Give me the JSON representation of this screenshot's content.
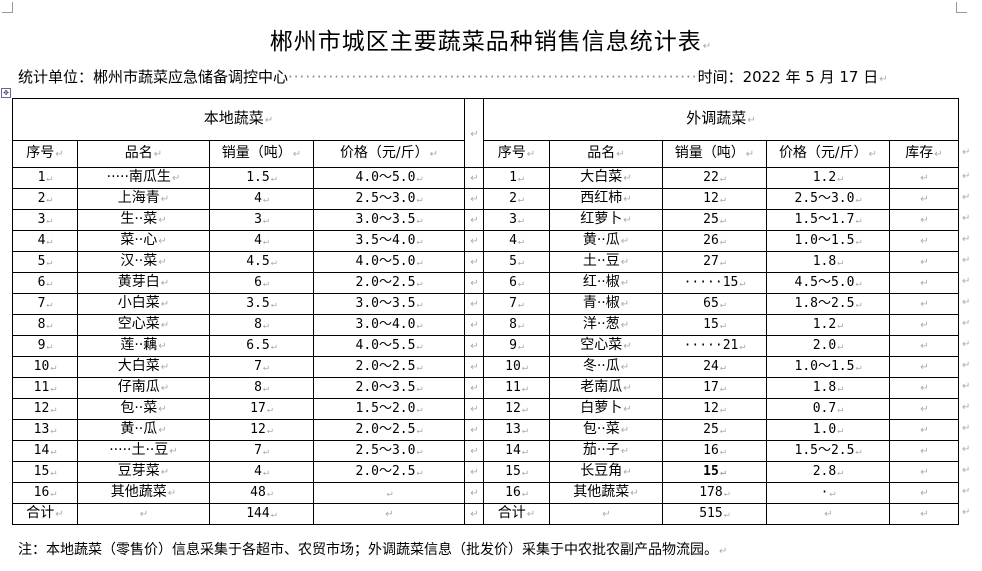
{
  "title": "郴州市城区主要蔬菜品种销售信息统计表",
  "meta": {
    "unit_label": "统计单位：郴州市蔬菜应急储备调控中心",
    "date_label": "时间：2022 年 5 月 17 日"
  },
  "table": {
    "local_header": "本地蔬菜",
    "outside_header": "外调蔬菜",
    "local_columns": [
      "序号",
      "品名",
      "销量（吨）",
      "价格（元/斤）"
    ],
    "outside_columns": [
      "序号",
      "品名",
      "销量（吨）",
      "价格（元/斤）",
      "库存"
    ],
    "local_rows": [
      [
        "1",
        "·····南瓜生",
        "1.5",
        "4.0～5.0"
      ],
      [
        "2",
        "上海青",
        "4",
        "2.5～3.0"
      ],
      [
        "3",
        "生··菜",
        "3",
        "3.0～3.5"
      ],
      [
        "4",
        "菜··心",
        "4",
        "3.5～4.0"
      ],
      [
        "5",
        "汉··菜",
        "4.5",
        "4.0～5.0"
      ],
      [
        "6",
        "黄芽白",
        "6",
        "2.0～2.5"
      ],
      [
        "7",
        "小白菜",
        "3.5",
        "3.0～3.5"
      ],
      [
        "8",
        "空心菜",
        "8",
        "3.0～4.0"
      ],
      [
        "9",
        "莲··藕",
        "6.5",
        "4.0～5.5"
      ],
      [
        "10",
        "大白菜",
        "7",
        "2.0～2.5"
      ],
      [
        "11",
        "仔南瓜",
        "8",
        "2.0～3.5"
      ],
      [
        "12",
        "包··菜",
        "17",
        "1.5～2.0"
      ],
      [
        "13",
        "黄··瓜",
        "12",
        "2.0～2.5"
      ],
      [
        "14",
        "·····土··豆",
        "7",
        "2.5～3.0"
      ],
      [
        "15",
        "豆芽菜",
        "4",
        "2.0～2.5"
      ],
      [
        "16",
        "其他蔬菜",
        "48",
        ""
      ]
    ],
    "outside_rows": [
      [
        "1",
        "大白菜",
        "22",
        "1.2",
        ""
      ],
      [
        "2",
        "西红柿",
        "12",
        "2.5～3.0",
        ""
      ],
      [
        "3",
        "红萝卜",
        "25",
        "1.5～1.7",
        ""
      ],
      [
        "4",
        "黄··瓜",
        "26",
        "1.0～1.5",
        ""
      ],
      [
        "5",
        "土··豆",
        "27",
        "1.8",
        ""
      ],
      [
        "6",
        "红··椒",
        "·····15",
        "4.5～5.0",
        ""
      ],
      [
        "7",
        "青··椒",
        "65",
        "1.8～2.5",
        ""
      ],
      [
        "8",
        "洋··葱",
        "15",
        "1.2",
        ""
      ],
      [
        "9",
        "空心菜",
        "·····21",
        "2.0",
        ""
      ],
      [
        "10",
        "冬··瓜",
        "24",
        "1.0～1.5",
        ""
      ],
      [
        "11",
        "老南瓜",
        "17",
        "1.8",
        ""
      ],
      [
        "12",
        "白萝卜",
        "12",
        "0.7",
        ""
      ],
      [
        "13",
        "包··菜",
        "25",
        "1.0",
        ""
      ],
      [
        "14",
        "茄··子",
        "16",
        "1.5～2.5",
        ""
      ],
      [
        "15",
        "长豆角",
        "15",
        "2.8",
        ""
      ],
      [
        "16",
        "其他蔬菜",
        "178",
        "·",
        ""
      ]
    ],
    "total_label": "合计",
    "local_total": "144",
    "outside_total": "515"
  },
  "note": "注：本地蔬菜（零售价）信息采集于各超市、农贸市场；外调蔬菜信息（批发价）采集于中农批农副产品物流园。"
}
